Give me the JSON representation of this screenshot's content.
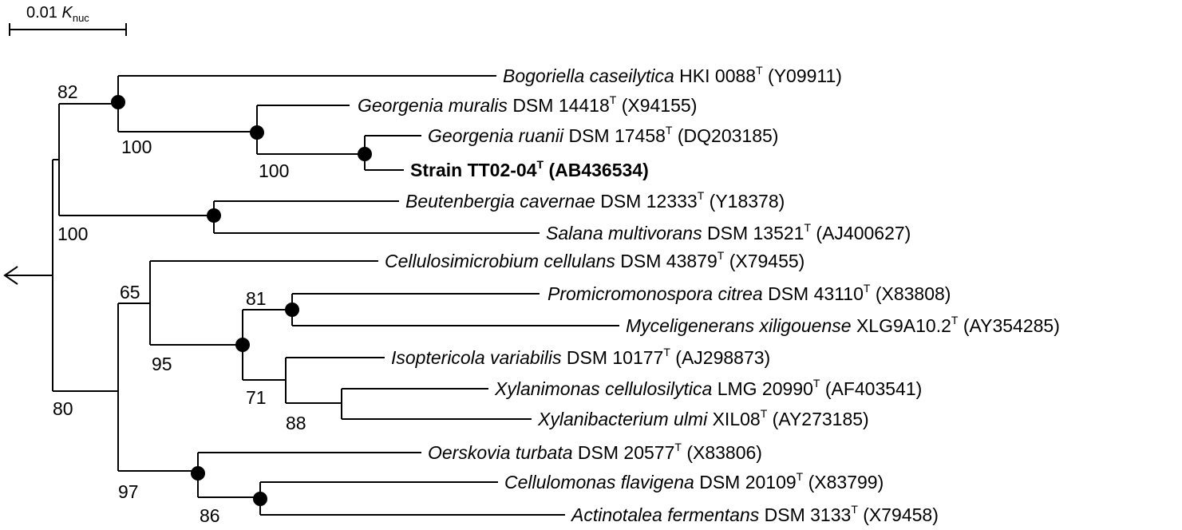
{
  "scale_bar": {
    "value": "0.01",
    "var": "K",
    "sub": "nuc"
  },
  "taxa": [
    {
      "genus_species": "Bogoriella caseilytica",
      "strain": "HKI 0088",
      "type": "T",
      "accession": "(Y09911)",
      "bold": false
    },
    {
      "genus_species": "Georgenia muralis",
      "strain": "DSM 14418",
      "type": "T",
      "accession": "(X94155)",
      "bold": false
    },
    {
      "genus_species": "Georgenia ruanii",
      "strain": "DSM 17458",
      "type": "T",
      "accession": "(DQ203185)",
      "bold": false
    },
    {
      "genus_species": "",
      "strain": "Strain TT02-04",
      "type": "T",
      "accession": "(AB436534)",
      "bold": true
    },
    {
      "genus_species": "Beutenbergia cavernae",
      "strain": "DSM 12333",
      "type": "T",
      "accession": "(Y18378)",
      "bold": false
    },
    {
      "genus_species": "Salana multivorans",
      "strain": "DSM 13521",
      "type": "T",
      "accession": "(AJ400627)",
      "bold": false
    },
    {
      "genus_species": "Cellulosimicrobium cellulans",
      "strain": "DSM 43879",
      "type": "T",
      "accession": "(X79455)",
      "bold": false
    },
    {
      "genus_species": "Promicromonospora citrea",
      "strain": "DSM 43110",
      "type": "T",
      "accession": "(X83808)",
      "bold": false
    },
    {
      "genus_species": "Myceligenerans xiligouense",
      "strain": "XLG9A10.2",
      "type": "T",
      "accession": "(AY354285)",
      "bold": false
    },
    {
      "genus_species": "Isoptericola variabilis",
      "strain": "DSM 10177",
      "type": "T",
      "accession": "(AJ298873)",
      "bold": false
    },
    {
      "genus_species": "Xylanimonas cellulosilytica",
      "strain": "LMG 20990",
      "type": "T",
      "accession": "(AF403541)",
      "bold": false
    },
    {
      "genus_species": "Xylanibacterium ulmi",
      "strain": "XIL08",
      "type": "T",
      "accession": "(AY273185)",
      "bold": false
    },
    {
      "genus_species": "Oerskovia turbata",
      "strain": "DSM 20577",
      "type": "T",
      "accession": "(X83806)",
      "bold": false
    },
    {
      "genus_species": "Cellulomonas flavigena",
      "strain": "DSM 20109",
      "type": "T",
      "accession": "(X83799)",
      "bold": false
    },
    {
      "genus_species": "Actinotalea fermentans",
      "strain": "DSM 3133",
      "type": "T",
      "accession": "(X79458)",
      "bold": false
    }
  ],
  "bootstrap": [
    "82",
    "100",
    "100",
    "100",
    "65",
    "81",
    "95",
    "71",
    "88",
    "80",
    "97",
    "86"
  ]
}
